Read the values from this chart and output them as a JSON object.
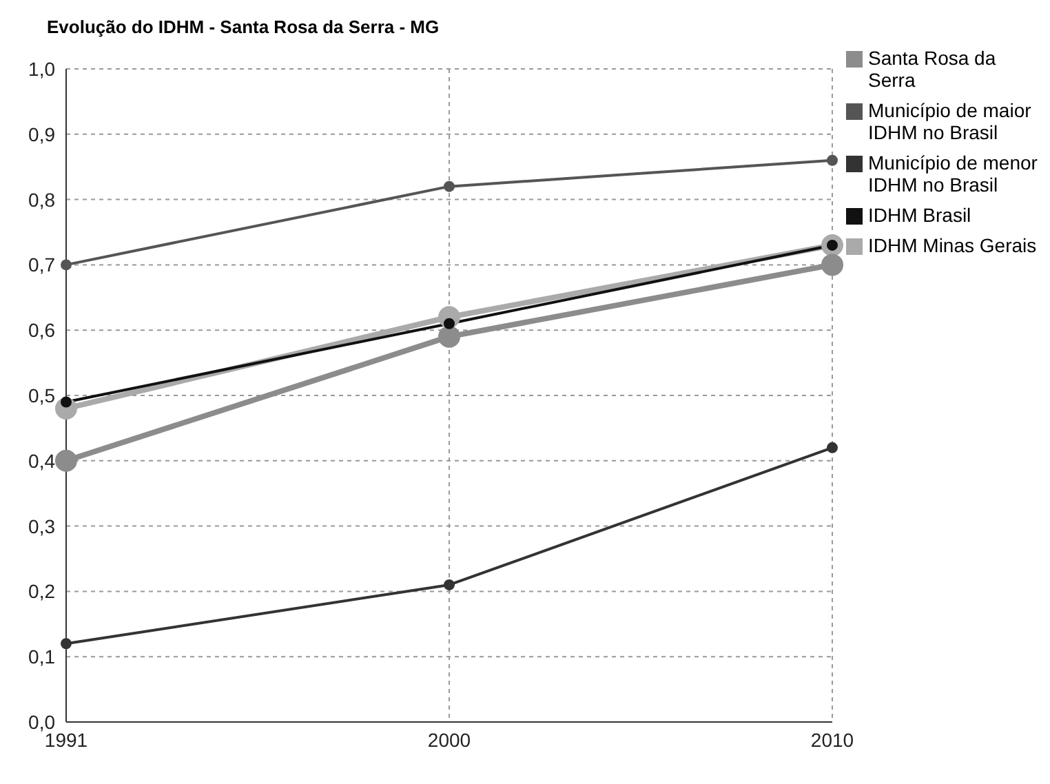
{
  "chart_data": {
    "type": "line",
    "title": "Evolução do IDHM - Santa Rosa da Serra - MG",
    "categories": [
      "1991",
      "2000",
      "2010"
    ],
    "series": [
      {
        "name": "Santa Rosa da Serra",
        "color": "#8c8c8c",
        "values": [
          0.4,
          0.59,
          0.7
        ]
      },
      {
        "name": "Município de maior IDHM no Brasil",
        "color": "#555555",
        "values": [
          0.7,
          0.82,
          0.86
        ]
      },
      {
        "name": "Município de menor IDHM no Brasil",
        "color": "#333333",
        "values": [
          0.12,
          0.21,
          0.42
        ]
      },
      {
        "name": "IDHM Brasil",
        "color": "#111111",
        "values": [
          0.49,
          0.61,
          0.73
        ]
      },
      {
        "name": "IDHM Minas Gerais",
        "color": "#aaaaaa",
        "values": [
          0.48,
          0.62,
          0.73
        ]
      }
    ],
    "ylim": [
      0,
      1
    ],
    "yticks": [
      {
        "value": 0,
        "label": "0,0"
      },
      {
        "value": 0.1,
        "label": "0,1"
      },
      {
        "value": 0.2,
        "label": "0,2"
      },
      {
        "value": 0.3,
        "label": "0,3"
      },
      {
        "value": 0.4,
        "label": "0,4"
      },
      {
        "value": 0.5,
        "label": "0,5"
      },
      {
        "value": 0.6,
        "label": "0,6"
      },
      {
        "value": 0.7,
        "label": "0,7"
      },
      {
        "value": 0.8,
        "label": "0,8"
      },
      {
        "value": 0.9,
        "label": "0,9"
      },
      {
        "value": 1,
        "label": "1,0"
      }
    ],
    "grid": true,
    "legend": "right",
    "marker": "circle",
    "line_style": "solid"
  }
}
